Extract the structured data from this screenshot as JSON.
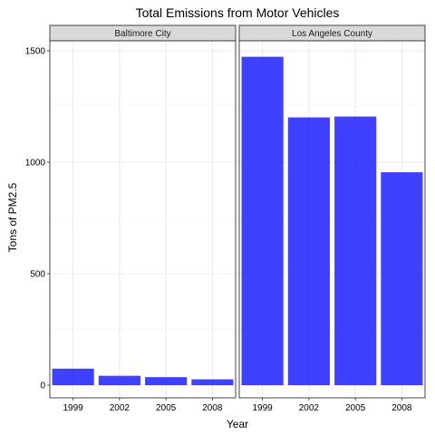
{
  "chart_data": {
    "type": "bar",
    "title": "Total Emissions from Motor Vehicles",
    "xlabel": "Year",
    "ylabel": "Tons of PM2.5",
    "categories": [
      "1999",
      "2002",
      "2005",
      "2008"
    ],
    "ylim": [
      0,
      1550
    ],
    "yticks": [
      0,
      500,
      1000,
      1500
    ],
    "bar_color": "#0000ff",
    "grid": true,
    "facets": [
      {
        "name": "Baltimore City",
        "values": [
          74,
          42,
          36,
          26
        ]
      },
      {
        "name": "Los Angeles County",
        "values": [
          1473,
          1201,
          1205,
          955
        ]
      }
    ]
  }
}
